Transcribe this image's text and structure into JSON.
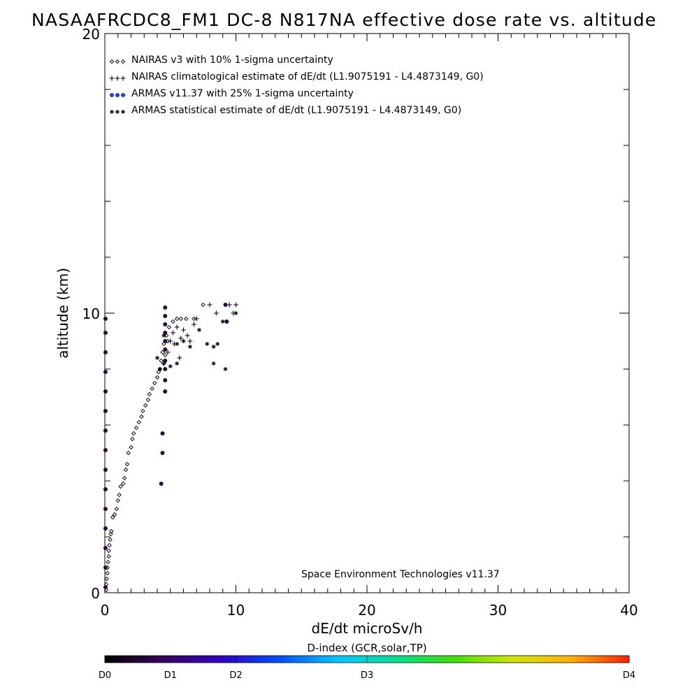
{
  "chart_data": {
    "type": "scatter",
    "title": "NASAAFRCDC8_FM1 DC-8   N817NA effective dose rate vs. altitude",
    "xlabel": "dE/dt microSv/h",
    "ylabel": "altitude (km)",
    "xlim": [
      0,
      40
    ],
    "ylim": [
      0,
      20
    ],
    "x_ticks": [
      0,
      10,
      20,
      30,
      40
    ],
    "y_ticks": [
      0,
      10,
      20
    ],
    "grid": false,
    "legend_position": "top-left",
    "credit": "Space Environment Technologies v11.37",
    "series": [
      {
        "name": "NAIRAS v3 with 10% 1-sigma uncertainty",
        "marker": "diamond",
        "color": "#000000",
        "points": [
          [
            0.1,
            0.1
          ],
          [
            0.1,
            0.3
          ],
          [
            0.15,
            0.5
          ],
          [
            0.2,
            0.7
          ],
          [
            0.2,
            0.9
          ],
          [
            0.25,
            1.1
          ],
          [
            0.3,
            1.3
          ],
          [
            0.3,
            1.5
          ],
          [
            0.35,
            1.7
          ],
          [
            0.4,
            1.9
          ],
          [
            0.45,
            2.1
          ],
          [
            0.5,
            2.2
          ],
          [
            0.6,
            2.7
          ],
          [
            0.75,
            2.8
          ],
          [
            0.9,
            3.0
          ],
          [
            1.0,
            3.3
          ],
          [
            1.1,
            3.5
          ],
          [
            1.2,
            3.8
          ],
          [
            1.4,
            3.9
          ],
          [
            1.5,
            4.1
          ],
          [
            1.6,
            4.4
          ],
          [
            1.7,
            4.6
          ],
          [
            1.8,
            5.0
          ],
          [
            2.0,
            5.2
          ],
          [
            2.1,
            5.5
          ],
          [
            2.2,
            5.7
          ],
          [
            2.4,
            5.9
          ],
          [
            2.6,
            6.1
          ],
          [
            2.8,
            6.3
          ],
          [
            2.9,
            6.5
          ],
          [
            3.1,
            6.7
          ],
          [
            3.3,
            6.9
          ],
          [
            3.4,
            7.1
          ],
          [
            3.6,
            7.3
          ],
          [
            3.8,
            7.5
          ],
          [
            4.0,
            7.7
          ],
          [
            4.1,
            7.9
          ],
          [
            4.2,
            8.0
          ],
          [
            4.3,
            8.3
          ],
          [
            4.4,
            8.6
          ],
          [
            4.5,
            8.9
          ],
          [
            4.7,
            9.2
          ],
          [
            4.9,
            9.5
          ],
          [
            5.2,
            9.7
          ],
          [
            5.5,
            9.8
          ],
          [
            5.8,
            9.8
          ],
          [
            6.2,
            9.8
          ],
          [
            6.8,
            9.8
          ],
          [
            7.5,
            10.3
          ],
          [
            4.6,
            8.5
          ],
          [
            4.5,
            8.2
          ],
          [
            4.8,
            9.0
          ]
        ]
      },
      {
        "name": "NAIRAS climatological estimate of dE/dt (L1.9075191 - L4.4873149, G0)",
        "marker": "plus",
        "color": "#000000",
        "points": [
          [
            4.5,
            8.2
          ],
          [
            4.8,
            8.6
          ],
          [
            5.0,
            9.0
          ],
          [
            5.2,
            9.3
          ],
          [
            5.5,
            9.5
          ],
          [
            5.7,
            8.4
          ],
          [
            6.0,
            9.4
          ],
          [
            6.3,
            9.2
          ],
          [
            6.5,
            9.0
          ],
          [
            6.8,
            9.6
          ],
          [
            5.3,
            8.9
          ],
          [
            5.8,
            9.1
          ],
          [
            7.0,
            9.8
          ],
          [
            8.0,
            10.3
          ],
          [
            8.5,
            10.0
          ],
          [
            9.5,
            10.3
          ],
          [
            9.8,
            10.0
          ],
          [
            10.0,
            10.3
          ]
        ]
      },
      {
        "name": "ARMAS v11.37 with 25% 1-sigma uncertainty",
        "marker": "dot",
        "color": "#2a0a40",
        "points": [
          [
            0.05,
            0.2
          ],
          [
            0.05,
            0.9
          ],
          [
            0.05,
            1.6
          ],
          [
            0.05,
            2.3
          ],
          [
            0.05,
            3.0
          ],
          [
            0.05,
            3.7
          ],
          [
            0.05,
            4.4
          ],
          [
            0.05,
            5.1
          ],
          [
            0.05,
            5.8
          ],
          [
            0.05,
            6.5
          ],
          [
            0.05,
            7.2
          ],
          [
            0.05,
            7.9
          ],
          [
            0.05,
            8.6
          ],
          [
            0.05,
            9.3
          ],
          [
            0.05,
            9.8
          ],
          [
            4.3,
            3.9
          ],
          [
            4.4,
            5.0
          ],
          [
            4.4,
            5.7
          ],
          [
            4.6,
            7.2
          ],
          [
            4.6,
            7.6
          ],
          [
            4.6,
            8.0
          ],
          [
            4.6,
            8.3
          ],
          [
            4.6,
            8.7
          ],
          [
            4.6,
            9.0
          ],
          [
            4.6,
            9.3
          ],
          [
            4.6,
            9.6
          ],
          [
            4.6,
            9.9
          ],
          [
            4.6,
            10.2
          ],
          [
            9.2,
            10.3
          ],
          [
            9.3,
            9.7
          ]
        ]
      },
      {
        "name": "ARMAS statistical estimate of dE/dt (L1.9075191 - L4.4873149, G0)",
        "marker": "asterisk",
        "color": "#000000",
        "points": [
          [
            4.0,
            8.4
          ],
          [
            4.2,
            8.0
          ],
          [
            4.5,
            9.2
          ],
          [
            5.0,
            8.1
          ],
          [
            5.5,
            8.2
          ],
          [
            5.5,
            8.9
          ],
          [
            6.0,
            9.0
          ],
          [
            6.5,
            8.8
          ],
          [
            7.2,
            9.4
          ],
          [
            7.8,
            8.9
          ],
          [
            8.3,
            8.2
          ],
          [
            8.3,
            8.8
          ],
          [
            8.6,
            8.9
          ],
          [
            9.0,
            9.7
          ],
          [
            9.2,
            8.0
          ],
          [
            10.0,
            10.0
          ]
        ]
      }
    ],
    "colorbar": {
      "title": "D-index (GCR,solar,TP)",
      "labels": [
        {
          "text": "D0",
          "value": 0
        },
        {
          "text": "D1",
          "value": 0.125
        },
        {
          "text": "D2",
          "value": 0.25
        },
        {
          "text": "D3",
          "value": 0.5
        },
        {
          "text": "D4",
          "value": 1.0
        }
      ],
      "stops": [
        "#000000",
        "#3a0060",
        "#2f00c8",
        "#0050ff",
        "#00c8ff",
        "#00e090",
        "#40e000",
        "#d0e800",
        "#ffb000",
        "#ff2000"
      ]
    }
  }
}
